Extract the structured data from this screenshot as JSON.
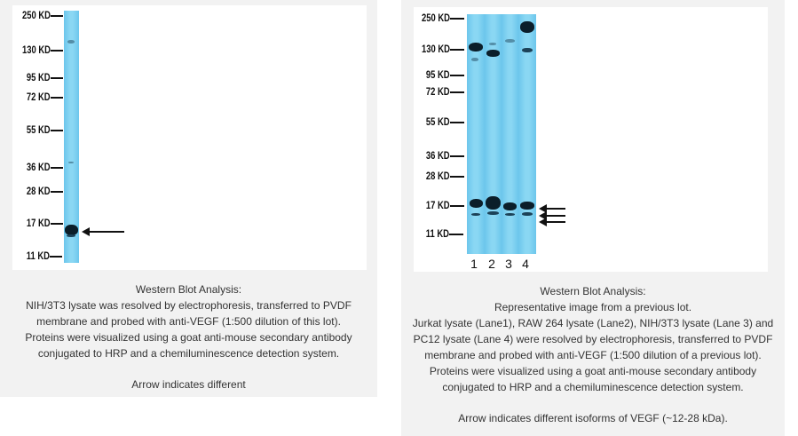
{
  "left_panel": {
    "mw_labels": [
      "250 KD",
      "130 KD",
      "95 KD",
      "72 KD",
      "55 KD",
      "36 KD",
      "28 KD",
      "17 KD",
      "11 KD"
    ],
    "caption": {
      "title": "Western Blot Analysis:",
      "lines": [
        "NIH/3T3 lysate was resolved by electrophoresis, transferred to PVDF",
        "membrane and probed with anti-VEGF (1:500 dilution of this lot).",
        "Proteins were visualized using a goat anti-mouse secondary antibody",
        "conjugated to HRP and a chemiluminescence detection system."
      ],
      "note": "Arrow indicates different"
    }
  },
  "right_panel": {
    "mw_labels": [
      "250 KD",
      "130 KD",
      "95 KD",
      "72 KD",
      "55 KD",
      "36 KD",
      "28 KD",
      "17 KD",
      "11 KD"
    ],
    "lane_numbers": [
      "1",
      "2",
      "3",
      "4"
    ],
    "caption": {
      "title": "Western Blot Analysis:",
      "lines": [
        "Representative image from a previous lot.",
        "Jurkat lysate (Lane1), RAW 264 lysate (Lane2), NIH/3T3 lysate (Lane 3) and",
        "PC12 lysate (Lane 4) were resolved by electrophoresis, transferred to PVDF",
        "membrane and probed with anti-VEGF (1:500 dilution of a previous lot).",
        "Proteins were visualized using a goat anti-mouse secondary antibody",
        "conjugated to HRP and a chemiluminescence detection system."
      ],
      "note": "Arrow indicates different isoforms of VEGF (~12-28 kDa)."
    }
  },
  "colors": {
    "membrane": "#7fd0f0",
    "band": "#0b1e2a",
    "panel_bg": "#f2f2f2"
  }
}
